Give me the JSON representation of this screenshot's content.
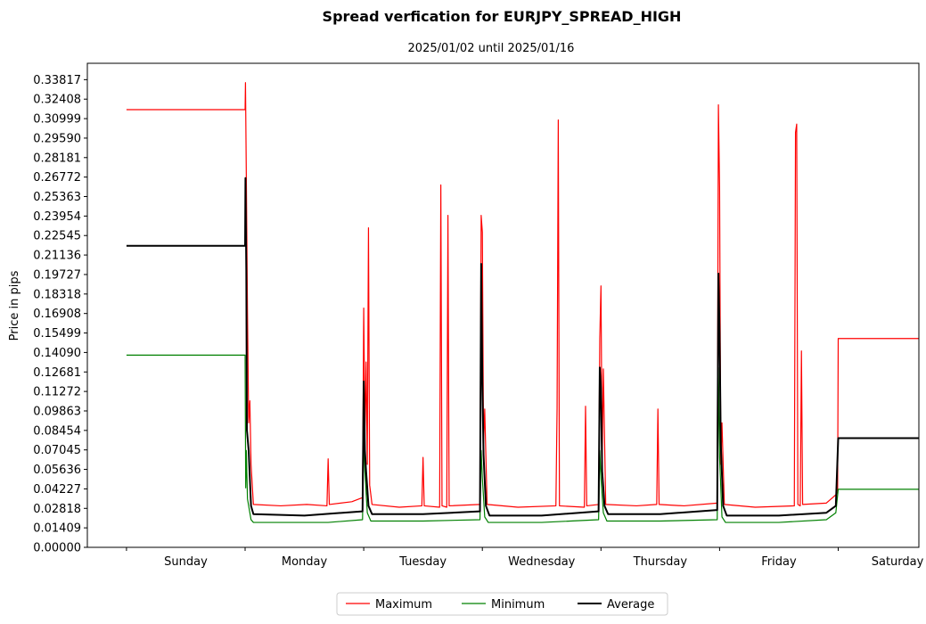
{
  "chart_data": {
    "type": "line",
    "title": "Spread verfication for EURJPY_SPREAD_HIGH",
    "subtitle": "2025/01/02 until 2025/01/16",
    "xlabel": "",
    "ylabel": "Price in pips",
    "ylim": [
      0,
      0.35
    ],
    "xlim": [
      -0.33,
      6.68
    ],
    "yticks": [
      "0.00000",
      "0.01409",
      "0.02818",
      "0.04227",
      "0.05636",
      "0.07045",
      "0.08454",
      "0.09863",
      "0.11272",
      "0.12681",
      "0.14090",
      "0.15499",
      "0.16908",
      "0.18318",
      "0.19727",
      "0.21136",
      "0.22545",
      "0.23954",
      "0.25363",
      "0.26772",
      "0.28181",
      "0.29590",
      "0.30999",
      "0.32408",
      "0.33817"
    ],
    "xticks": [
      "Sunday",
      "Monday",
      "Tuesday",
      "Wednesday",
      "Thursday",
      "Friday",
      "Saturday"
    ],
    "grid": false,
    "legend_position": "bottom-center",
    "series": [
      {
        "name": "Maximum",
        "color": "#ff0000",
        "points": [
          [
            0,
            0.3165
          ],
          [
            1,
            0.3165
          ],
          [
            1.003,
            0.336
          ],
          [
            1.01,
            0.27
          ],
          [
            1.02,
            0.17
          ],
          [
            1.03,
            0.09
          ],
          [
            1.04,
            0.106
          ],
          [
            1.05,
            0.06
          ],
          [
            1.07,
            0.031
          ],
          [
            1.3,
            0.03
          ],
          [
            1.52,
            0.031
          ],
          [
            1.69,
            0.03
          ],
          [
            1.7,
            0.064
          ],
          [
            1.71,
            0.031
          ],
          [
            1.9,
            0.033
          ],
          [
            1.99,
            0.036
          ],
          [
            2.0,
            0.173
          ],
          [
            2.01,
            0.08
          ],
          [
            2.02,
            0.134
          ],
          [
            2.03,
            0.06
          ],
          [
            2.04,
            0.231
          ],
          [
            2.05,
            0.045
          ],
          [
            2.07,
            0.031
          ],
          [
            2.3,
            0.029
          ],
          [
            2.49,
            0.03
          ],
          [
            2.5,
            0.065
          ],
          [
            2.51,
            0.03
          ],
          [
            2.64,
            0.029
          ],
          [
            2.65,
            0.262
          ],
          [
            2.66,
            0.03
          ],
          [
            2.7,
            0.029
          ],
          [
            2.71,
            0.24
          ],
          [
            2.72,
            0.03
          ],
          [
            2.98,
            0.031
          ],
          [
            2.99,
            0.24
          ],
          [
            3.0,
            0.228
          ],
          [
            3.01,
            0.075
          ],
          [
            3.02,
            0.1
          ],
          [
            3.04,
            0.031
          ],
          [
            3.3,
            0.029
          ],
          [
            3.62,
            0.03
          ],
          [
            3.63,
            0.101
          ],
          [
            3.64,
            0.309
          ],
          [
            3.65,
            0.03
          ],
          [
            3.86,
            0.029
          ],
          [
            3.87,
            0.102
          ],
          [
            3.88,
            0.03
          ],
          [
            3.98,
            0.031
          ],
          [
            3.99,
            0.151
          ],
          [
            4.0,
            0.189
          ],
          [
            4.01,
            0.06
          ],
          [
            4.02,
            0.129
          ],
          [
            4.04,
            0.031
          ],
          [
            4.3,
            0.03
          ],
          [
            4.47,
            0.031
          ],
          [
            4.48,
            0.1
          ],
          [
            4.49,
            0.031
          ],
          [
            4.7,
            0.03
          ],
          [
            4.98,
            0.032
          ],
          [
            4.99,
            0.32
          ],
          [
            5.0,
            0.26
          ],
          [
            5.01,
            0.06
          ],
          [
            5.02,
            0.09
          ],
          [
            5.04,
            0.031
          ],
          [
            5.3,
            0.029
          ],
          [
            5.63,
            0.03
          ],
          [
            5.64,
            0.3
          ],
          [
            5.65,
            0.306
          ],
          [
            5.66,
            0.031
          ],
          [
            5.68,
            0.03
          ],
          [
            5.69,
            0.142
          ],
          [
            5.7,
            0.031
          ],
          [
            5.9,
            0.032
          ],
          [
            5.98,
            0.038
          ],
          [
            5.995,
            0.04
          ],
          [
            6.0,
            0.151
          ],
          [
            7.0,
            0.151
          ]
        ]
      },
      {
        "name": "Minimum",
        "color": "#008000",
        "points": [
          [
            0,
            0.139
          ],
          [
            1,
            0.139
          ],
          [
            1.005,
            0.043
          ],
          [
            1.01,
            0.07
          ],
          [
            1.02,
            0.035
          ],
          [
            1.05,
            0.02
          ],
          [
            1.07,
            0.018
          ],
          [
            1.5,
            0.018
          ],
          [
            1.7,
            0.018
          ],
          [
            1.99,
            0.02
          ],
          [
            2.0,
            0.08
          ],
          [
            2.01,
            0.055
          ],
          [
            2.03,
            0.025
          ],
          [
            2.06,
            0.019
          ],
          [
            2.5,
            0.019
          ],
          [
            2.98,
            0.02
          ],
          [
            2.99,
            0.07
          ],
          [
            3.0,
            0.05
          ],
          [
            3.02,
            0.022
          ],
          [
            3.05,
            0.018
          ],
          [
            3.5,
            0.018
          ],
          [
            3.98,
            0.02
          ],
          [
            3.99,
            0.07
          ],
          [
            4.0,
            0.05
          ],
          [
            4.02,
            0.025
          ],
          [
            4.05,
            0.019
          ],
          [
            4.5,
            0.019
          ],
          [
            4.98,
            0.02
          ],
          [
            4.99,
            0.13
          ],
          [
            5.0,
            0.065
          ],
          [
            5.02,
            0.022
          ],
          [
            5.05,
            0.018
          ],
          [
            5.5,
            0.018
          ],
          [
            5.9,
            0.02
          ],
          [
            5.98,
            0.025
          ],
          [
            6.0,
            0.042
          ],
          [
            7.0,
            0.042
          ]
        ]
      },
      {
        "name": "Average",
        "color": "#000000",
        "points": [
          [
            0,
            0.218
          ],
          [
            1,
            0.218
          ],
          [
            1.003,
            0.267
          ],
          [
            1.01,
            0.2
          ],
          [
            1.015,
            0.085
          ],
          [
            1.03,
            0.07
          ],
          [
            1.05,
            0.03
          ],
          [
            1.07,
            0.024
          ],
          [
            1.5,
            0.023
          ],
          [
            1.99,
            0.026
          ],
          [
            2.0,
            0.12
          ],
          [
            2.01,
            0.07
          ],
          [
            2.02,
            0.055
          ],
          [
            2.04,
            0.03
          ],
          [
            2.07,
            0.024
          ],
          [
            2.5,
            0.024
          ],
          [
            2.98,
            0.026
          ],
          [
            2.99,
            0.205
          ],
          [
            3.0,
            0.12
          ],
          [
            3.01,
            0.067
          ],
          [
            3.03,
            0.03
          ],
          [
            3.06,
            0.023
          ],
          [
            3.5,
            0.023
          ],
          [
            3.98,
            0.026
          ],
          [
            3.99,
            0.13
          ],
          [
            4.0,
            0.115
          ],
          [
            4.01,
            0.055
          ],
          [
            4.03,
            0.03
          ],
          [
            4.06,
            0.024
          ],
          [
            4.5,
            0.024
          ],
          [
            4.98,
            0.027
          ],
          [
            4.99,
            0.198
          ],
          [
            5.0,
            0.155
          ],
          [
            5.01,
            0.075
          ],
          [
            5.03,
            0.03
          ],
          [
            5.06,
            0.023
          ],
          [
            5.5,
            0.023
          ],
          [
            5.9,
            0.025
          ],
          [
            5.98,
            0.03
          ],
          [
            6.0,
            0.079
          ],
          [
            7.0,
            0.079
          ]
        ]
      }
    ]
  }
}
